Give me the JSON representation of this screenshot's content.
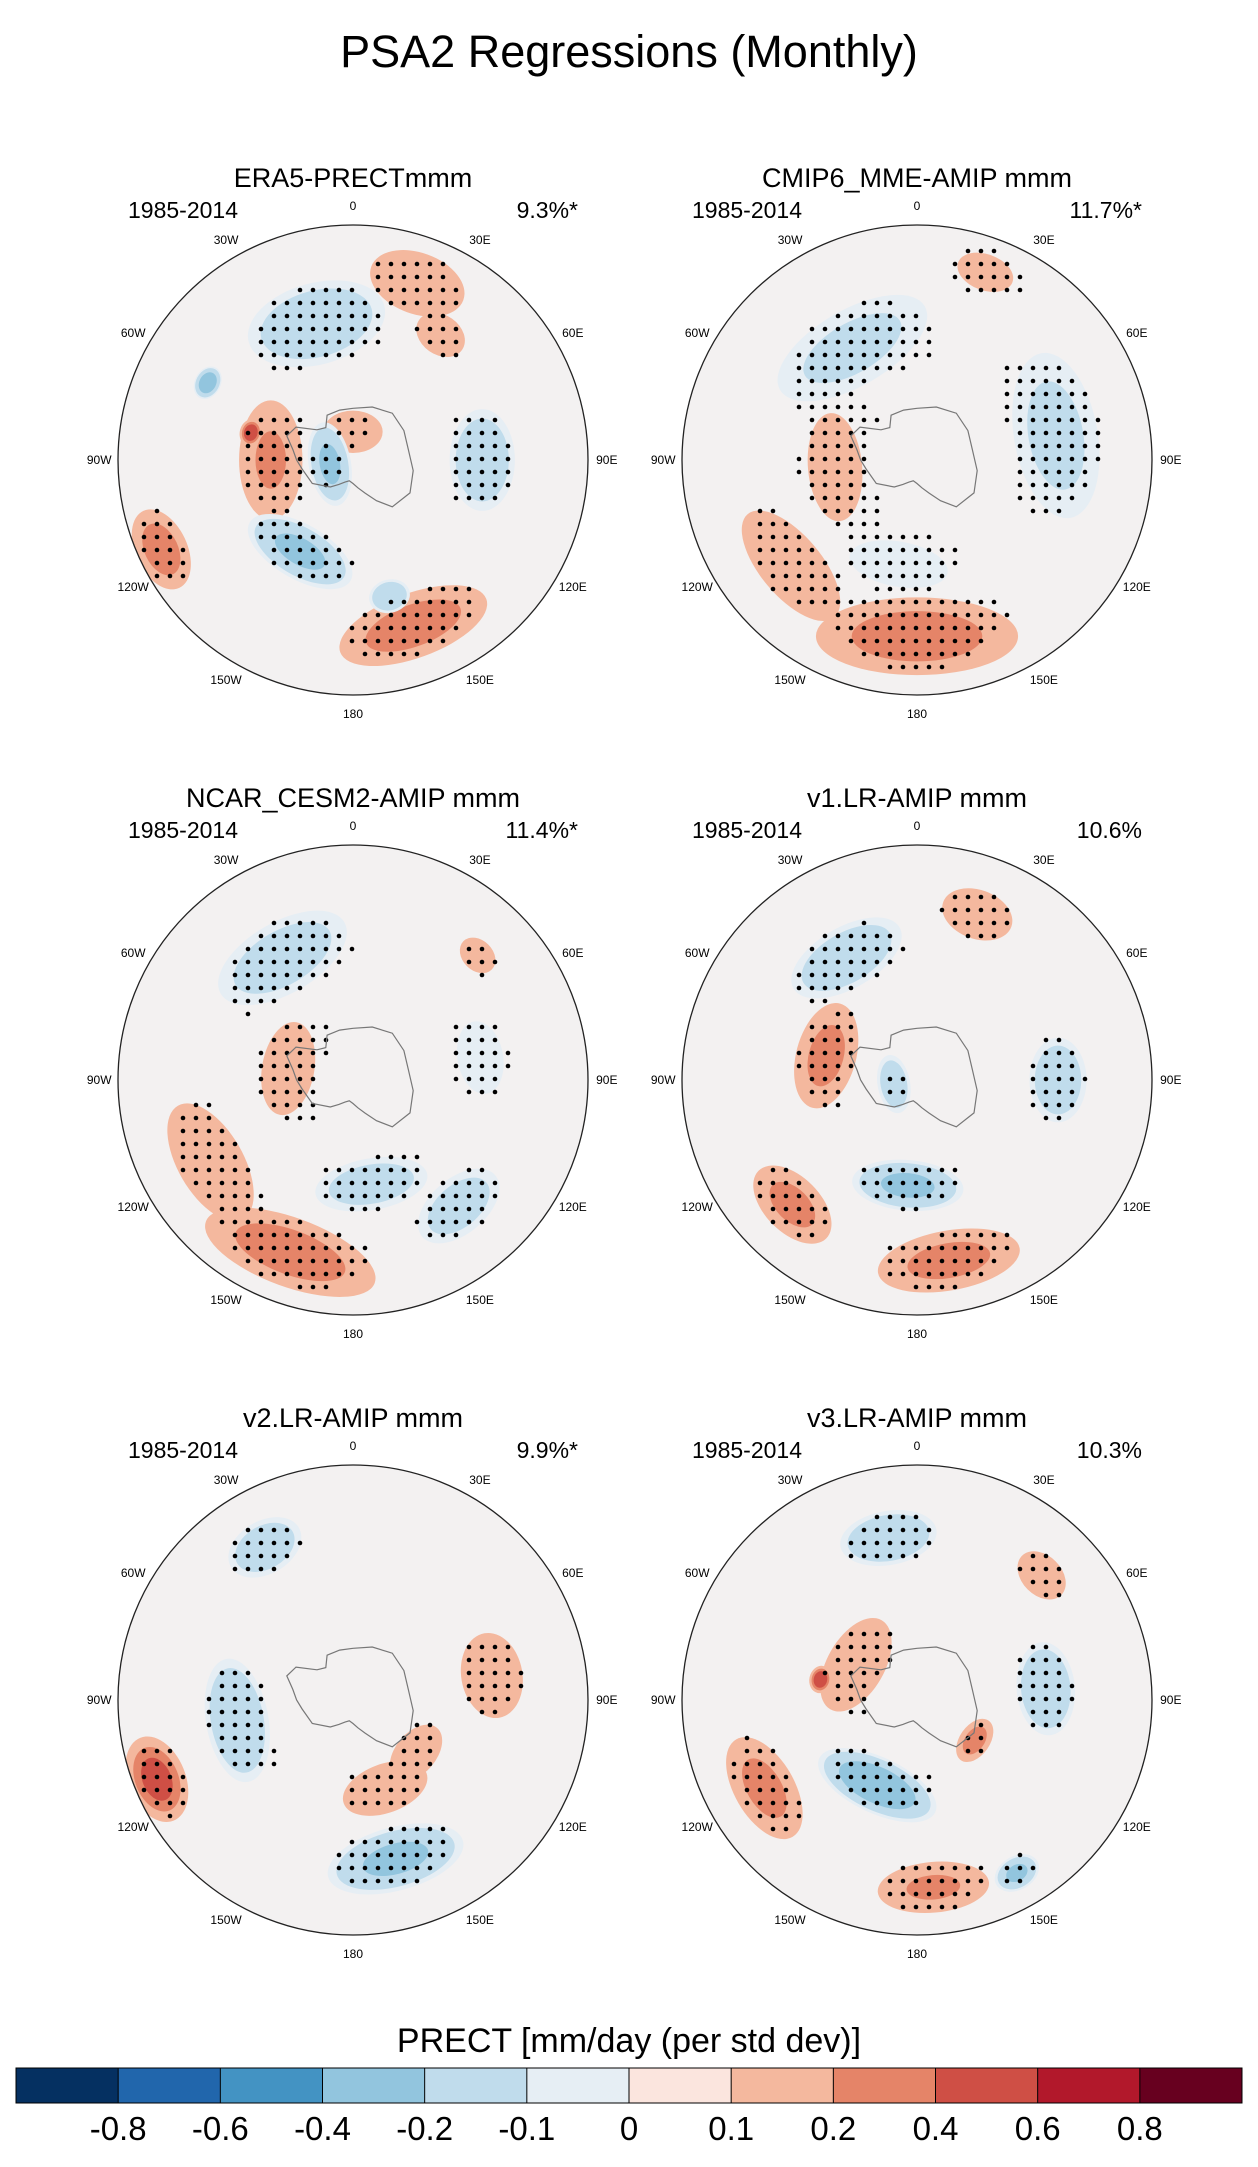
{
  "chart_data": {
    "type": "polar-map-panels",
    "title": "PSA2 Regressions (Monthly)",
    "colorbar": {
      "label": "PRECT [mm/day (per std dev)]",
      "ticks": [
        "-0.8",
        "-0.6",
        "-0.4",
        "-0.2",
        "-0.1",
        "0",
        "0.1",
        "0.2",
        "0.4",
        "0.6",
        "0.8"
      ],
      "colors": [
        "#053061",
        "#2166ac",
        "#4393c3",
        "#92c5de",
        "#c0dcec",
        "#e6eef4",
        "#fbe5de",
        "#f4b89e",
        "#e58468",
        "#cf4f45",
        "#b2182b",
        "#67001f"
      ]
    },
    "lon_labels": [
      "0",
      "30E",
      "60E",
      "90E",
      "120E",
      "150E",
      "180",
      "150W",
      "120W",
      "90W",
      "60W",
      "30W"
    ],
    "panels": [
      {
        "title": "ERA5-PRECTmmm",
        "years": "1985-2014",
        "pct": "9.3%*"
      },
      {
        "title": "CMIP6_MME-AMIP  mmm",
        "years": "1985-2014",
        "pct": "11.7%*"
      },
      {
        "title": "NCAR_CESM2-AMIP  mmm",
        "years": "1985-2014",
        "pct": "11.4%*"
      },
      {
        "title": "v1.LR-AMIP  mmm",
        "years": "1985-2014",
        "pct": "10.6%"
      },
      {
        "title": "v2.LR-AMIP  mmm",
        "years": "1985-2014",
        "pct": "9.9%*"
      },
      {
        "title": "v3.LR-AMIP  mmm",
        "years": "1985-2014",
        "pct": "10.3%"
      }
    ],
    "blobs": [
      [
        {
          "lon": 0,
          "r": 0.12,
          "v": 0.15,
          "sd": 0.12,
          "st": 10,
          "s": true
        },
        {
          "lon": 20,
          "r": 0.8,
          "v": 0.3,
          "sd": 0.15,
          "st": 15,
          "s": true
        },
        {
          "lon": 35,
          "r": 0.65,
          "v": 0.25,
          "sd": 0.1,
          "st": 8,
          "s": true
        },
        {
          "lon": -15,
          "r": 0.6,
          "v": -0.3,
          "sd": 0.2,
          "st": 18,
          "s": true
        },
        {
          "lon": 90,
          "r": 0.55,
          "v": -0.3,
          "sd": 0.16,
          "st": 14,
          "s": true
        },
        {
          "lon": -90,
          "r": 0.35,
          "v": 0.4,
          "sd": 0.15,
          "st": 22,
          "s": true
        },
        {
          "lon": -100,
          "r": 0.1,
          "v": -0.4,
          "sd": 0.1,
          "st": 25,
          "s": true
        },
        {
          "lon": -150,
          "r": 0.45,
          "v": -0.4,
          "sd": 0.13,
          "st": 28,
          "s": true
        },
        {
          "lon": 160,
          "r": 0.75,
          "v": 0.5,
          "sd": 0.15,
          "st": 35,
          "s": true
        },
        {
          "lon": -115,
          "r": 0.9,
          "v": 0.5,
          "sd": 0.12,
          "st": 16,
          "s": true
        },
        {
          "lon": -62,
          "r": 0.7,
          "v": -0.5,
          "sd": 0.06,
          "st": 8,
          "s": false
        },
        {
          "lon": 165,
          "r": 0.6,
          "v": -0.35,
          "sd": 0.08,
          "st": 6,
          "s": false
        },
        {
          "lon": -75,
          "r": 0.45,
          "v": 0.75,
          "sd": 0.05,
          "st": 6,
          "s": false
        }
      ],
      [
        {
          "lon": -30,
          "r": 0.55,
          "v": -0.2,
          "sd": 0.2,
          "st": 30,
          "s": true
        },
        {
          "lon": 80,
          "r": 0.6,
          "v": -0.2,
          "sd": 0.22,
          "st": 25,
          "s": true
        },
        {
          "lon": 20,
          "r": 0.85,
          "v": 0.1,
          "sd": 0.12,
          "st": 15,
          "s": true
        },
        {
          "lon": -95,
          "r": 0.35,
          "v": 0.1,
          "sd": 0.18,
          "st": 25,
          "s": true
        },
        {
          "lon": -170,
          "r": 0.45,
          "v": -0.1,
          "sd": 0.15,
          "st": 30,
          "s": true
        },
        {
          "lon": 180,
          "r": 0.75,
          "v": 0.5,
          "sd": 0.18,
          "st": 40,
          "s": true
        },
        {
          "lon": -130,
          "r": 0.7,
          "v": 0.3,
          "sd": 0.15,
          "st": 30,
          "s": true
        }
      ],
      [
        {
          "lon": -30,
          "r": 0.6,
          "v": -0.25,
          "sd": 0.18,
          "st": 25,
          "s": true
        },
        {
          "lon": -80,
          "r": 0.28,
          "v": 0.12,
          "sd": 0.16,
          "st": 20,
          "s": true
        },
        {
          "lon": 80,
          "r": 0.55,
          "v": -0.12,
          "sd": 0.14,
          "st": 15,
          "s": true
        },
        {
          "lon": 170,
          "r": 0.45,
          "v": -0.25,
          "sd": 0.13,
          "st": 30,
          "s": true
        },
        {
          "lon": 140,
          "r": 0.7,
          "v": -0.25,
          "sd": 0.14,
          "st": 18,
          "s": true
        },
        {
          "lon": -160,
          "r": 0.78,
          "v": 0.5,
          "sd": 0.16,
          "st": 40,
          "s": true
        },
        {
          "lon": -120,
          "r": 0.7,
          "v": 0.3,
          "sd": 0.16,
          "st": 25,
          "s": true
        },
        {
          "lon": 45,
          "r": 0.75,
          "v": 0.2,
          "sd": 0.08,
          "st": 8,
          "s": true
        }
      ],
      [
        {
          "lon": -30,
          "r": 0.6,
          "v": -0.3,
          "sd": 0.15,
          "st": 25,
          "s": true
        },
        {
          "lon": 20,
          "r": 0.75,
          "v": 0.3,
          "sd": 0.12,
          "st": 12,
          "s": true
        },
        {
          "lon": -75,
          "r": 0.4,
          "v": 0.45,
          "sd": 0.14,
          "st": 20,
          "s": true
        },
        {
          "lon": 90,
          "r": 0.6,
          "v": -0.3,
          "sd": 0.14,
          "st": 12,
          "s": true
        },
        {
          "lon": -175,
          "r": 0.45,
          "v": -0.4,
          "sd": 0.12,
          "st": 30,
          "s": true
        },
        {
          "lon": 170,
          "r": 0.78,
          "v": 0.45,
          "sd": 0.14,
          "st": 35,
          "s": true
        },
        {
          "lon": -135,
          "r": 0.75,
          "v": 0.45,
          "sd": 0.13,
          "st": 18,
          "s": true
        },
        {
          "lon": -100,
          "r": 0.1,
          "v": -0.3,
          "sd": 0.08,
          "st": 20,
          "s": true
        }
      ],
      [
        {
          "lon": -30,
          "r": 0.75,
          "v": -0.3,
          "sd": 0.13,
          "st": 12,
          "s": true
        },
        {
          "lon": -100,
          "r": 0.5,
          "v": -0.35,
          "sd": 0.15,
          "st": 25,
          "s": true
        },
        {
          "lon": 80,
          "r": 0.6,
          "v": 0.3,
          "sd": 0.15,
          "st": 10,
          "s": true
        },
        {
          "lon": 165,
          "r": 0.7,
          "v": -0.4,
          "sd": 0.15,
          "st": 30,
          "s": true
        },
        {
          "lon": -112,
          "r": 0.9,
          "v": 0.65,
          "sd": 0.13,
          "st": 14,
          "s": true
        },
        {
          "lon": 160,
          "r": 0.4,
          "v": 0.3,
          "sd": 0.12,
          "st": 20,
          "s": true
        },
        {
          "lon": 130,
          "r": 0.35,
          "v": 0.3,
          "sd": 0.1,
          "st": 15,
          "s": true
        }
      ],
      [
        {
          "lon": -10,
          "r": 0.7,
          "v": -0.35,
          "sd": 0.13,
          "st": 20,
          "s": true
        },
        {
          "lon": 85,
          "r": 0.55,
          "v": -0.35,
          "sd": 0.14,
          "st": 15,
          "s": true
        },
        {
          "lon": -155,
          "r": 0.4,
          "v": -0.5,
          "sd": 0.13,
          "st": 32,
          "s": true
        },
        {
          "lon": -120,
          "r": 0.75,
          "v": 0.45,
          "sd": 0.14,
          "st": 22,
          "s": true
        },
        {
          "lon": 175,
          "r": 0.8,
          "v": 0.4,
          "sd": 0.12,
          "st": 30,
          "s": true
        },
        {
          "lon": 150,
          "r": 0.85,
          "v": -0.4,
          "sd": 0.08,
          "st": 10,
          "s": true
        },
        {
          "lon": -60,
          "r": 0.3,
          "v": 0.3,
          "sd": 0.14,
          "st": 20,
          "s": true
        },
        {
          "lon": 45,
          "r": 0.75,
          "v": 0.25,
          "sd": 0.1,
          "st": 10,
          "s": true
        },
        {
          "lon": 125,
          "r": 0.3,
          "v": 0.5,
          "sd": 0.07,
          "st": 15,
          "s": true
        },
        {
          "lon": -78,
          "r": 0.42,
          "v": 0.75,
          "sd": 0.05,
          "st": 6,
          "s": false
        }
      ]
    ]
  }
}
